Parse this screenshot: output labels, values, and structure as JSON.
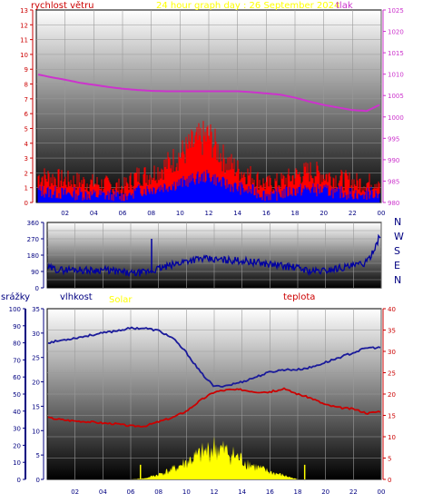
{
  "colors": {
    "panel_top": "#ffffff",
    "panel_bottom": "#000000",
    "grid": "#9a9a9a",
    "wind_gust": "#ff0000",
    "wind_avg": "#0000ff",
    "pressure": "#cc33cc",
    "direction": "#0000a0",
    "humidity": "#1a1a9a",
    "temperature": "#cc0000",
    "solar": "#ffff00",
    "title": "#ffff00"
  },
  "chart_data": [
    {
      "type": "bar",
      "title": "24 hour graph day : 26 September 2024",
      "left_axis_label": "rychlost větru",
      "right_axis_label": "tlak",
      "left_ticks": [
        "0",
        "1",
        "2",
        "3",
        "4",
        "5",
        "6",
        "7",
        "8",
        "9",
        "10",
        "11",
        "12",
        "13"
      ],
      "right_ticks": [
        "980",
        "985",
        "990",
        "995",
        "1000",
        "1005",
        "1010",
        "1015",
        "1020",
        "1025"
      ],
      "x_ticks": [
        "02",
        "04",
        "06",
        "08",
        "10",
        "12",
        "14",
        "16",
        "18",
        "20",
        "22",
        "00"
      ],
      "ylim_left": [
        0,
        13
      ],
      "ylim_right": [
        980,
        1025
      ],
      "grid": true,
      "series": [
        {
          "name": "wind_gust",
          "x": [
            0,
            1,
            2,
            3,
            4,
            5,
            6,
            7,
            8,
            9,
            10,
            11,
            12,
            13,
            14,
            15,
            16,
            17,
            18,
            19,
            20,
            21,
            22,
            23,
            24
          ],
          "values": [
            1.8,
            1.7,
            1.5,
            1.4,
            1.3,
            1.2,
            1.0,
            1.8,
            1.9,
            2.5,
            3.2,
            4.0,
            4.5,
            3.0,
            2.2,
            1.8,
            1.2,
            1.4,
            1.8,
            2.1,
            1.9,
            1.6,
            1.4,
            1.3,
            1.6
          ]
        },
        {
          "name": "wind_avg",
          "x": [
            0,
            1,
            2,
            3,
            4,
            5,
            6,
            7,
            8,
            9,
            10,
            11,
            12,
            13,
            14,
            15,
            16,
            17,
            18,
            19,
            20,
            21,
            22,
            23,
            24
          ],
          "values": [
            0.8,
            0.7,
            0.6,
            0.6,
            0.5,
            0.5,
            0.4,
            0.8,
            0.9,
            1.1,
            1.3,
            1.6,
            1.8,
            1.3,
            1.0,
            0.8,
            0.5,
            0.6,
            0.8,
            0.9,
            0.8,
            0.7,
            0.6,
            0.6,
            0.7
          ]
        },
        {
          "name": "pressure",
          "x": [
            0,
            1,
            2,
            3,
            4,
            5,
            6,
            7,
            8,
            9,
            10,
            11,
            12,
            13,
            14,
            15,
            16,
            17,
            18,
            19,
            20,
            21,
            22,
            23,
            24
          ],
          "values": [
            1010,
            1009.3,
            1008.7,
            1008,
            1007.5,
            1007,
            1006.6,
            1006.3,
            1006.1,
            1006,
            1006,
            1006,
            1006,
            1006,
            1006,
            1005.8,
            1005.5,
            1005.2,
            1004.5,
            1003.6,
            1002.8,
            1002.2,
            1001.6,
            1001.4,
            1003
          ]
        }
      ]
    },
    {
      "type": "line",
      "left_ticks": [
        "0",
        "90",
        "180",
        "270",
        "360"
      ],
      "direction_labels": [
        "N",
        "W",
        "S",
        "E",
        "N"
      ],
      "ylim": [
        0,
        360
      ],
      "grid": true,
      "series": [
        {
          "name": "direction",
          "x": [
            0,
            1,
            2,
            3,
            4,
            5,
            6,
            7,
            8,
            9,
            10,
            11,
            12,
            13,
            14,
            15,
            16,
            17,
            18,
            19,
            20,
            21,
            22,
            23,
            24
          ],
          "values": [
            110,
            98,
            102,
            95,
            100,
            90,
            78,
            85,
            105,
            125,
            150,
            160,
            155,
            152,
            150,
            140,
            130,
            120,
            110,
            90,
            95,
            110,
            120,
            140,
            300
          ]
        }
      ]
    },
    {
      "type": "line",
      "label_rain": "srážky",
      "label_humidity": "vlhkost",
      "label_solar": "Solar",
      "label_temperature": "teplota",
      "rain_ticks": [
        "0",
        "10",
        "20",
        "30",
        "40",
        "50",
        "60",
        "70",
        "80",
        "90",
        "100"
      ],
      "humidity_ticks": [
        "0",
        "5",
        "10",
        "15",
        "20",
        "25",
        "30",
        "35"
      ],
      "temperature_ticks": [
        "0",
        "5",
        "10",
        "15",
        "20",
        "25",
        "30",
        "35",
        "40"
      ],
      "x_ticks": [
        "02",
        "04",
        "06",
        "08",
        "10",
        "12",
        "14",
        "16",
        "18",
        "20",
        "22",
        "00"
      ],
      "ylim_humidity": [
        0,
        35
      ],
      "ylim_temperature": [
        0,
        40
      ],
      "grid": true,
      "series": [
        {
          "name": "humidity",
          "x": [
            0,
            1,
            2,
            3,
            4,
            5,
            6,
            7,
            8,
            9,
            10,
            11,
            12,
            13,
            14,
            15,
            16,
            17,
            18,
            19,
            20,
            21,
            22,
            23,
            24
          ],
          "values": [
            28,
            28.5,
            29,
            29.5,
            30,
            30.5,
            31,
            31,
            30.5,
            29,
            26,
            22,
            19,
            19.3,
            20,
            21,
            22,
            22.5,
            22.5,
            23,
            24,
            25,
            26,
            27,
            27
          ]
        },
        {
          "name": "temperature",
          "x": [
            0,
            1,
            2,
            3,
            4,
            5,
            6,
            7,
            8,
            9,
            10,
            11,
            12,
            13,
            14,
            15,
            16,
            17,
            18,
            19,
            20,
            21,
            22,
            23,
            24
          ],
          "values": [
            14.5,
            14,
            13.7,
            13.5,
            13.2,
            13,
            12.5,
            12.5,
            13.5,
            14.5,
            16,
            18.5,
            20.5,
            21,
            21,
            20.5,
            20.5,
            21.2,
            20,
            19,
            17.5,
            16.8,
            16.5,
            15.5,
            16
          ]
        },
        {
          "name": "solar",
          "x": [
            6,
            7,
            8,
            9,
            10,
            11,
            12,
            13,
            14,
            15,
            16,
            17,
            18
          ],
          "values": [
            0,
            0.2,
            1,
            2,
            3.5,
            5,
            6.5,
            5.5,
            4,
            2.5,
            1.5,
            0.8,
            0
          ]
        }
      ]
    }
  ]
}
